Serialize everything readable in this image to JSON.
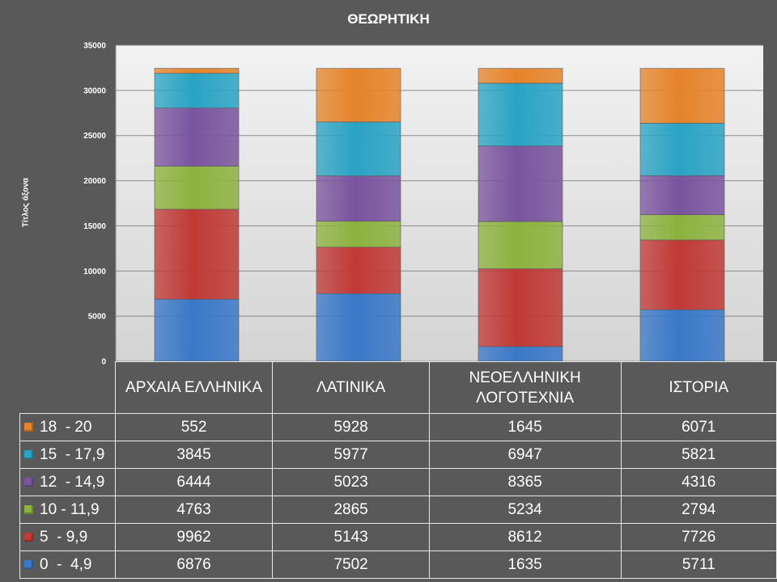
{
  "chart_data": {
    "type": "bar",
    "stacked": true,
    "title": "ΘΕΩΡΗΤΙΚΗ",
    "xlabel": "",
    "ylabel": "Τίτλος άξονα",
    "ylim": [
      0,
      35000
    ],
    "yticks": [
      "35000",
      "30000",
      "25000",
      "20000",
      "15000",
      "10000",
      "5000",
      "0"
    ],
    "grid": true,
    "legend": "data-table-left",
    "categories": [
      "ΑΡΧΑΙΑ ΕΛΛΗΝΙΚΑ",
      "ΛΑΤΙΝΙΚΑ",
      "ΝΕΟΕΛΛΗΝΙΚΗ ΛΟΓΟΤΕΧΝΙΑ",
      "ΙΣΤΟΡΙΑ"
    ],
    "series": [
      {
        "name": "0  -  4,9",
        "color": "#3a78c8",
        "values": [
          6876,
          7502,
          1635,
          5711
        ]
      },
      {
        "name": "5  - 9,9",
        "color": "#c03a37",
        "values": [
          9962,
          5143,
          8612,
          7726
        ]
      },
      {
        "name": "10 - 11,9",
        "color": "#8db23f",
        "values": [
          4763,
          2865,
          5234,
          2794
        ]
      },
      {
        "name": "12  - 14,9",
        "color": "#7a549e",
        "values": [
          6444,
          5023,
          8365,
          4316
        ]
      },
      {
        "name": "15  - 17,9",
        "color": "#2aa3c4",
        "values": [
          3845,
          5977,
          6947,
          5821
        ]
      },
      {
        "name": "18  - 20",
        "color": "#e5832a",
        "values": [
          552,
          5928,
          1645,
          6071
        ]
      }
    ]
  }
}
